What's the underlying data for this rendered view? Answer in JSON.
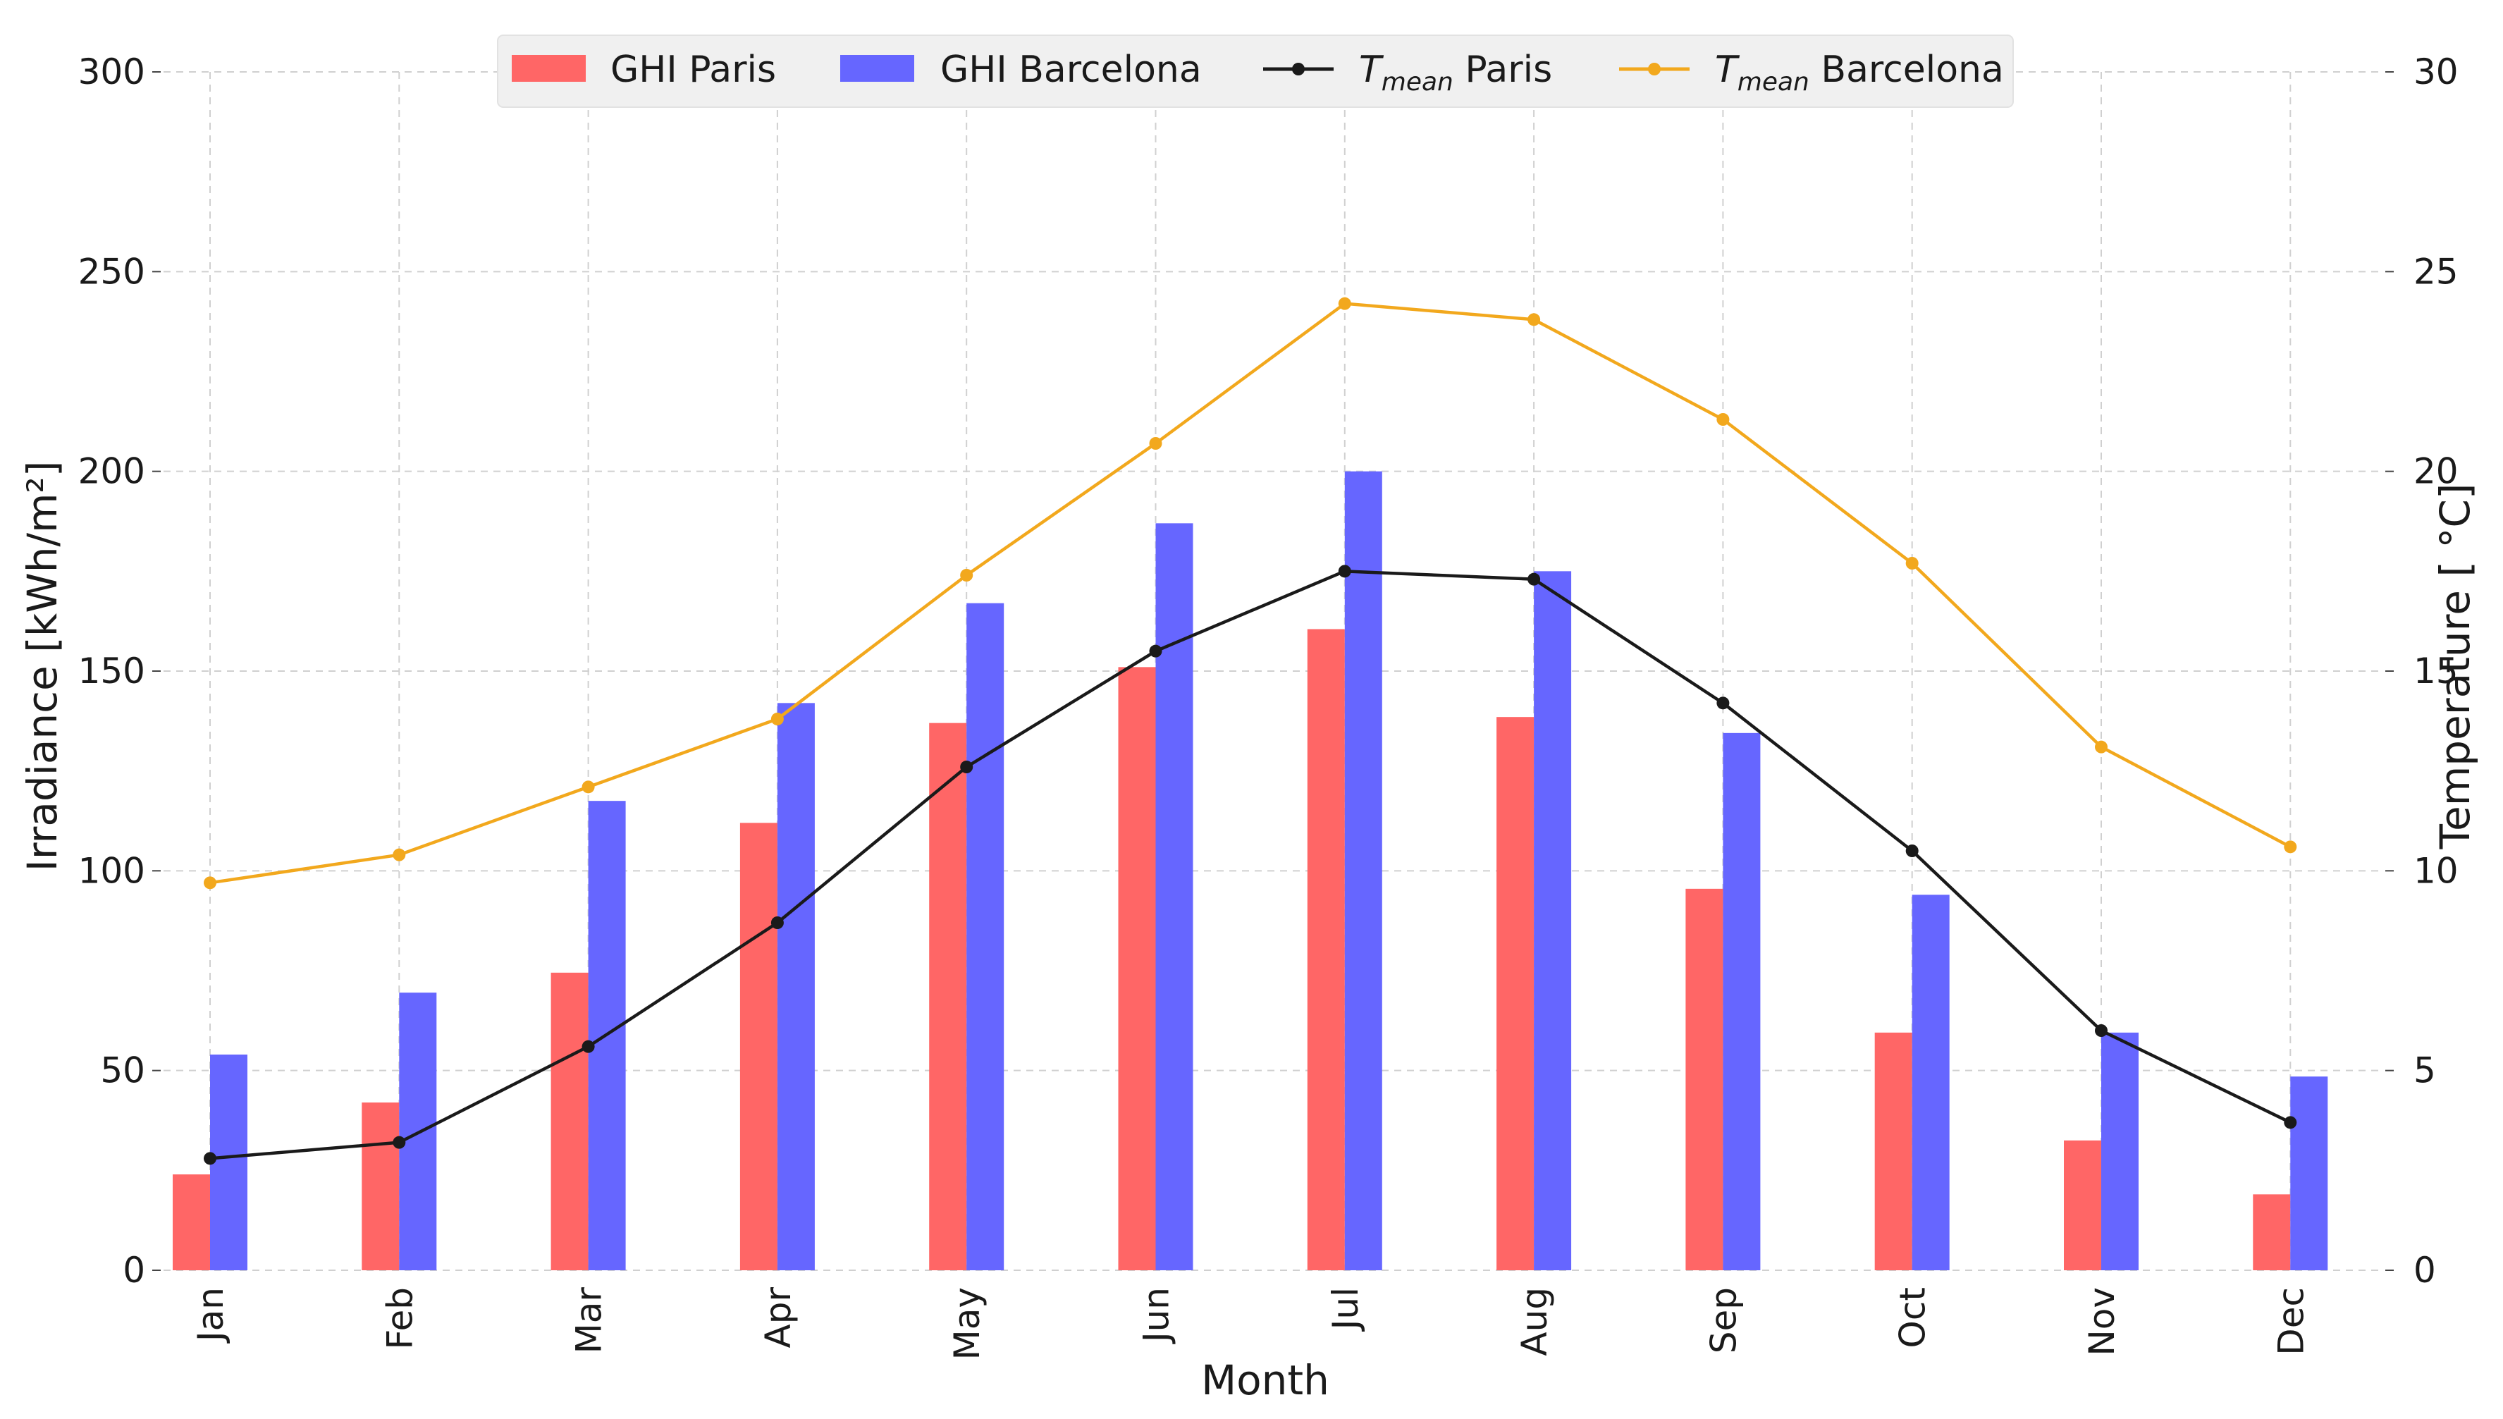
{
  "chart_data": {
    "type": "bar",
    "categories": [
      "Jan",
      "Feb",
      "Mar",
      "Apr",
      "May",
      "Jun",
      "Jul",
      "Aug",
      "Sep",
      "Oct",
      "Nov",
      "Dec"
    ],
    "series": [
      {
        "name": "GHI Paris",
        "kind": "bar",
        "axis": "left",
        "color": "#ff6666",
        "values": [
          24,
          42,
          74.5,
          112,
          137,
          151,
          160.5,
          138.5,
          95.5,
          59.5,
          32.5,
          19
        ]
      },
      {
        "name": "GHI Barcelona",
        "kind": "bar",
        "axis": "left",
        "color": "#6666ff",
        "values": [
          54,
          69.5,
          117.5,
          142,
          167,
          187,
          200,
          175,
          134.5,
          94,
          59.5,
          48.5
        ]
      },
      {
        "name": "T mean Paris",
        "kind": "line",
        "axis": "right",
        "color": "#1a1a1a",
        "values": [
          2.8,
          3.2,
          5.6,
          8.7,
          12.6,
          15.5,
          17.5,
          17.3,
          14.2,
          10.5,
          6.0,
          3.7
        ]
      },
      {
        "name": "T mean Barcelona",
        "kind": "line",
        "axis": "right",
        "color": "#f2a81d",
        "values": [
          9.7,
          10.4,
          12.1,
          13.8,
          17.4,
          20.7,
          24.2,
          23.8,
          21.3,
          17.7,
          13.1,
          10.6
        ]
      }
    ],
    "xlabel": "Month",
    "ylabel": "Irradiance [kWh/m²]",
    "y2label": "Temperature [ °C]",
    "ylim": [
      0,
      300
    ],
    "y2lim": [
      0,
      30
    ],
    "yticks": [
      "0",
      "50",
      "100",
      "150",
      "200",
      "250",
      "300"
    ],
    "y2ticks": [
      "0",
      "5",
      "10",
      "15",
      "20",
      "25",
      "30"
    ],
    "grid": true,
    "legend": {
      "position": "top-center",
      "items": [
        {
          "label": "GHI Paris"
        },
        {
          "label": "GHI Barcelona"
        },
        {
          "main": "T",
          "sub": "mean",
          "rest": " Paris"
        },
        {
          "main": "T",
          "sub": "mean",
          "rest": " Barcelona"
        }
      ]
    }
  }
}
